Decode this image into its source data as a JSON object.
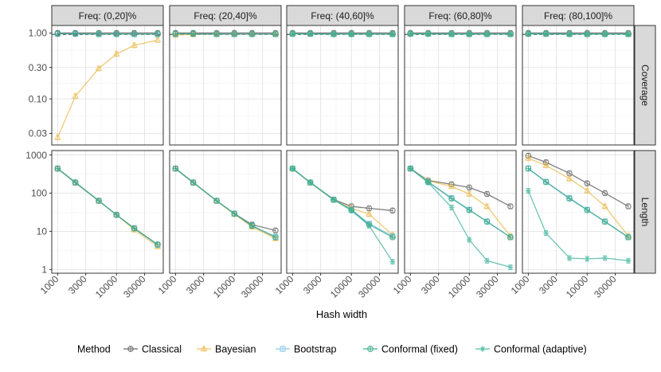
{
  "chart_data": {
    "type": "line",
    "facet_titles": [
      "Freq: (0,20]%",
      "Freq: (20,40]%",
      "Freq: (40,60]%",
      "Freq: (60,80]%",
      "Freq: (80,100]%"
    ],
    "row_titles": [
      "Coverage",
      "Length"
    ],
    "xlabel": "Hash width",
    "x_scale": "log10",
    "x": [
      1000,
      2000,
      5000,
      10000,
      20000,
      50000
    ],
    "x_ticks": [
      1000,
      3000,
      10000,
      30000
    ],
    "x_tick_labels": [
      "1000",
      "3000",
      "10000",
      "30000"
    ],
    "coverage_axis": {
      "scale": "log10",
      "ylim": [
        0.02,
        1.3
      ],
      "ticks": [
        0.03,
        0.1,
        0.3,
        1.0
      ],
      "tick_labels": [
        "0.03",
        "0.10",
        "0.30",
        "1.00"
      ],
      "reference_line": 0.95
    },
    "length_axis": {
      "scale": "log10",
      "ylim": [
        0.8,
        1300
      ],
      "ticks": [
        1,
        10,
        100,
        1000
      ],
      "tick_labels": [
        "1",
        "10",
        "100",
        "1000"
      ]
    },
    "legend": {
      "title": "Method",
      "position": "bottom",
      "entries": [
        {
          "name": "Classical",
          "color": "#555555",
          "marker": "circle"
        },
        {
          "name": "Bayesian",
          "color": "#E9B949",
          "marker": "triangle"
        },
        {
          "name": "Bootstrap",
          "color": "#7FC4E3",
          "marker": "square"
        },
        {
          "name": "Conformal (fixed)",
          "color": "#2AA281",
          "marker": "crossed-circle"
        },
        {
          "name": "Conformal (adaptive)",
          "color": "#3AB39A",
          "marker": "asterisk"
        }
      ]
    },
    "panels": [
      {
        "coverage": [
          {
            "name": "Classical",
            "values": [
              1,
              1,
              1,
              1,
              1,
              1
            ]
          },
          {
            "name": "Bayesian",
            "values": [
              0.026,
              0.11,
              0.29,
              0.48,
              0.65,
              0.78
            ]
          },
          {
            "name": "Bootstrap",
            "values": [
              0.97,
              0.97,
              0.96,
              0.96,
              0.96,
              0.96
            ]
          },
          {
            "name": "Conformal (fixed)",
            "values": [
              0.97,
              0.97,
              0.96,
              0.96,
              0.96,
              0.96
            ]
          }
        ],
        "length": [
          {
            "name": "Classical",
            "values": [
              440,
              190,
              63,
              27,
              12,
              4.5
            ]
          },
          {
            "name": "Bayesian",
            "values": [
              430,
              185,
              62,
              27,
              11,
              4.0
            ]
          },
          {
            "name": "Bootstrap",
            "values": [
              440,
              190,
              63,
              27,
              12,
              4.4
            ]
          },
          {
            "name": "Conformal (fixed)",
            "values": [
              440,
              190,
              63,
              27,
              12,
              4.5
            ]
          }
        ]
      },
      {
        "coverage": [
          {
            "name": "Classical",
            "values": [
              1,
              1,
              1,
              1,
              1,
              1
            ]
          },
          {
            "name": "Bayesian",
            "values": [
              0.93,
              0.95,
              0.96,
              0.96,
              0.96,
              0.96
            ]
          },
          {
            "name": "Bootstrap",
            "values": [
              0.97,
              0.97,
              0.96,
              0.96,
              0.96,
              0.96
            ]
          },
          {
            "name": "Conformal (fixed)",
            "values": [
              0.97,
              0.97,
              0.96,
              0.96,
              0.96,
              0.96
            ]
          }
        ],
        "length": [
          {
            "name": "Classical",
            "values": [
              440,
              190,
              63,
              29,
              15,
              10.5
            ]
          },
          {
            "name": "Bayesian",
            "values": [
              430,
              185,
              62,
              28,
              13,
              6.5
            ]
          },
          {
            "name": "Bootstrap",
            "values": [
              440,
              190,
              63,
              29,
              14,
              7.2
            ]
          },
          {
            "name": "Conformal (fixed)",
            "values": [
              440,
              190,
              63,
              29,
              14,
              7.0
            ]
          }
        ]
      },
      {
        "coverage": [
          {
            "name": "Classical",
            "values": [
              1,
              1,
              1,
              1,
              1,
              1
            ]
          },
          {
            "name": "Bayesian",
            "values": [
              0.97,
              0.97,
              0.96,
              0.96,
              0.96,
              0.96
            ]
          },
          {
            "name": "Bootstrap",
            "values": [
              0.97,
              0.97,
              0.96,
              0.96,
              0.96,
              0.96
            ]
          },
          {
            "name": "Conformal (fixed)",
            "values": [
              0.97,
              0.97,
              0.96,
              0.96,
              0.96,
              0.96
            ]
          },
          {
            "name": "Conformal (adaptive)",
            "values": [
              0.97,
              0.97,
              0.96,
              0.96,
              0.96,
              0.96
            ]
          }
        ],
        "length": [
          {
            "name": "Classical",
            "values": [
              440,
              190,
              68,
              45,
              40,
              35
            ]
          },
          {
            "name": "Bayesian",
            "values": [
              430,
              185,
              66,
              40,
              28,
              8.0
            ]
          },
          {
            "name": "Bootstrap",
            "values": [
              440,
              190,
              67,
              37,
              16,
              7.5
            ]
          },
          {
            "name": "Conformal (fixed)",
            "values": [
              440,
              190,
              67,
              36,
              15,
              7.0
            ]
          },
          {
            "name": "Conformal (adaptive)",
            "values": [
              440,
              190,
              67,
              35,
              14,
              1.6
            ]
          }
        ]
      },
      {
        "coverage": [
          {
            "name": "Classical",
            "values": [
              1,
              1,
              1,
              1,
              1,
              1
            ]
          },
          {
            "name": "Bayesian",
            "values": [
              0.97,
              0.97,
              0.96,
              0.96,
              0.96,
              0.96
            ]
          },
          {
            "name": "Bootstrap",
            "values": [
              0.97,
              0.97,
              0.96,
              0.96,
              0.96,
              0.96
            ]
          },
          {
            "name": "Conformal (fixed)",
            "values": [
              0.97,
              0.97,
              0.96,
              0.96,
              0.96,
              0.96
            ]
          },
          {
            "name": "Conformal (adaptive)",
            "values": [
              0.97,
              0.97,
              0.96,
              0.96,
              0.96,
              0.96
            ]
          }
        ],
        "length": [
          {
            "name": "Classical",
            "values": [
              440,
              215,
              170,
              140,
              95,
              45
            ]
          },
          {
            "name": "Bayesian",
            "values": [
              430,
              210,
              150,
              95,
              45,
              7.5
            ]
          },
          {
            "name": "Bootstrap",
            "values": [
              440,
              200,
              75,
              37,
              18,
              7.0
            ]
          },
          {
            "name": "Conformal (fixed)",
            "values": [
              440,
              195,
              72,
              36,
              18,
              7.0
            ]
          },
          {
            "name": "Conformal (adaptive)",
            "values": [
              440,
              190,
              42,
              6,
              1.7,
              1.15
            ]
          }
        ]
      },
      {
        "coverage": [
          {
            "name": "Classical",
            "values": [
              1,
              1,
              1,
              1,
              1,
              1
            ]
          },
          {
            "name": "Bayesian",
            "values": [
              0.97,
              0.97,
              0.96,
              0.96,
              0.96,
              0.96
            ]
          },
          {
            "name": "Bootstrap",
            "values": [
              0.97,
              0.97,
              0.96,
              0.96,
              0.96,
              0.96
            ]
          },
          {
            "name": "Conformal (fixed)",
            "values": [
              0.97,
              0.97,
              0.96,
              0.96,
              0.96,
              0.96
            ]
          },
          {
            "name": "Conformal (adaptive)",
            "values": [
              0.97,
              0.97,
              0.96,
              0.96,
              0.96,
              0.96
            ]
          }
        ],
        "length": [
          {
            "name": "Classical",
            "values": [
              950,
              640,
              330,
              180,
              100,
              45
            ]
          },
          {
            "name": "Bayesian",
            "values": [
              820,
              530,
              240,
              115,
              45,
              7.5
            ]
          },
          {
            "name": "Bootstrap",
            "values": [
              440,
              200,
              75,
              37,
              18,
              7.0
            ]
          },
          {
            "name": "Conformal (fixed)",
            "values": [
              440,
              195,
              72,
              36,
              18,
              7.0
            ]
          },
          {
            "name": "Conformal (adaptive)",
            "values": [
              115,
              9,
              2.0,
              1.9,
              2.0,
              1.7
            ]
          }
        ]
      }
    ]
  }
}
